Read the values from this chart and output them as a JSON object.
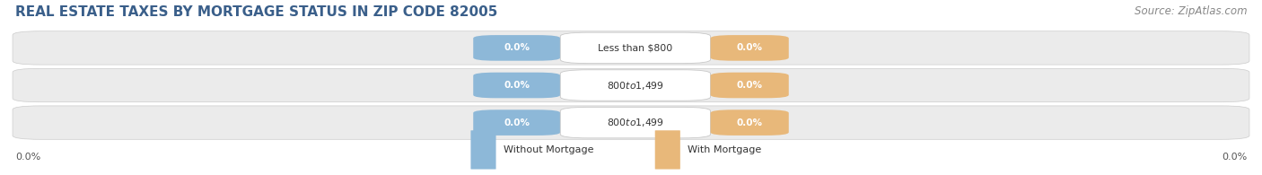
{
  "title": "REAL ESTATE TAXES BY MORTGAGE STATUS IN ZIP CODE 82005",
  "source": "Source: ZipAtlas.com",
  "categories": [
    "Less than $800",
    "$800 to $1,499",
    "$800 to $1,499"
  ],
  "without_mortgage": [
    0.0,
    0.0,
    0.0
  ],
  "with_mortgage": [
    0.0,
    0.0,
    0.0
  ],
  "without_mortgage_color": "#8db8d8",
  "with_mortgage_color": "#e8b87a",
  "row_bg_color": "#ebebeb",
  "title_fontsize": 11,
  "source_fontsize": 8.5,
  "legend_without": "Without Mortgage",
  "legend_with": "With Mortgage",
  "background_color": "#ffffff",
  "title_color": "#3a5f8a",
  "axis_label_color": "#555555",
  "cat_label_color": "#333333"
}
